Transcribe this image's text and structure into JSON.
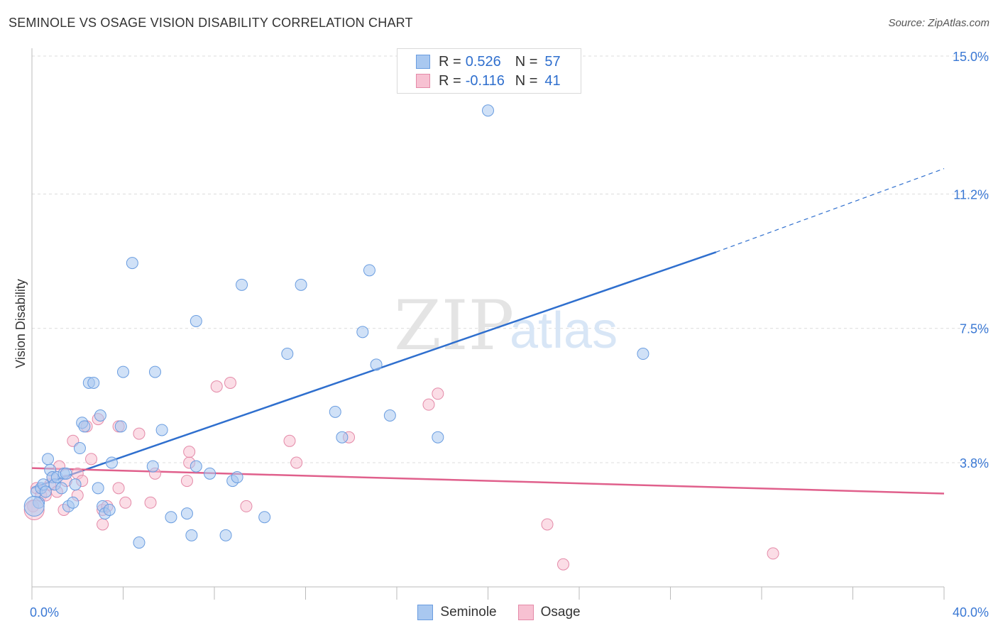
{
  "header": {
    "title": "SEMINOLE VS OSAGE VISION DISABILITY CORRELATION CHART",
    "source": "Source: ZipAtlas.com"
  },
  "watermark": {
    "zip": "ZIP",
    "atlas": "atlas"
  },
  "legend": {
    "rows": [
      {
        "r_label": "R =",
        "r_value": "0.526",
        "n_label": "N =",
        "n_value": "57",
        "color": "#a9c8f0",
        "border": "#6a9de0"
      },
      {
        "r_label": "R =",
        "r_value": "-0.116",
        "n_label": "N =",
        "n_value": "41",
        "color": "#f7c1d2",
        "border": "#e48aa8"
      }
    ]
  },
  "bottom_legend": [
    {
      "label": "Seminole",
      "color": "#a9c8f0",
      "border": "#6a9de0"
    },
    {
      "label": "Osage",
      "color": "#f7c1d2",
      "border": "#e48aa8"
    }
  ],
  "colors": {
    "seminole_fill": "#a9c8f0",
    "seminole_stroke": "#6a9de0",
    "seminole_line": "#2f6fce",
    "osage_fill": "#f7c1d2",
    "osage_stroke": "#e48aa8",
    "osage_line": "#e0608c",
    "tick_label": "#3a78d4",
    "grid": "#dcdcdc"
  },
  "chart_data": {
    "type": "scatter",
    "title": "SEMINOLE VS OSAGE VISION DISABILITY CORRELATION CHART",
    "xlabel": "",
    "ylabel": "Vision Disability",
    "xlim": [
      0,
      40
    ],
    "ylim": [
      0,
      15.5
    ],
    "x_tick_labels": [
      {
        "value": 0,
        "label": "0.0%"
      },
      {
        "value": 40,
        "label": "40.0%"
      }
    ],
    "y_tick_labels": [
      {
        "value": 3.8,
        "label": "3.8%"
      },
      {
        "value": 7.5,
        "label": "7.5%"
      },
      {
        "value": 11.2,
        "label": "11.2%"
      },
      {
        "value": 15.0,
        "label": "15.0%"
      }
    ],
    "x_minor_ticks": [
      0,
      4,
      8,
      12,
      16,
      20,
      24,
      28,
      32,
      36,
      40
    ],
    "y_gridlines": [
      3.8,
      7.5,
      11.2,
      15.0
    ],
    "grid": true,
    "legend_position": "top-center",
    "series": [
      {
        "name": "Seminole",
        "r": 0.526,
        "n": 57,
        "points": [
          [
            0.2,
            3.0
          ],
          [
            0.3,
            2.7
          ],
          [
            0.4,
            3.1
          ],
          [
            0.5,
            3.2
          ],
          [
            0.6,
            3.0
          ],
          [
            0.7,
            3.9
          ],
          [
            0.8,
            3.6
          ],
          [
            0.9,
            3.4
          ],
          [
            1.0,
            3.2
          ],
          [
            1.1,
            3.4
          ],
          [
            1.3,
            3.1
          ],
          [
            1.4,
            3.5
          ],
          [
            1.5,
            3.5
          ],
          [
            1.6,
            2.6
          ],
          [
            1.8,
            2.7
          ],
          [
            1.9,
            3.2
          ],
          [
            2.1,
            4.2
          ],
          [
            2.2,
            4.9
          ],
          [
            2.3,
            4.8
          ],
          [
            2.5,
            6.0
          ],
          [
            2.7,
            6.0
          ],
          [
            2.9,
            3.1
          ],
          [
            3.0,
            5.1
          ],
          [
            3.1,
            2.6
          ],
          [
            3.2,
            2.4
          ],
          [
            3.4,
            2.5
          ],
          [
            3.5,
            3.8
          ],
          [
            3.9,
            4.8
          ],
          [
            4.0,
            6.3
          ],
          [
            4.4,
            9.3
          ],
          [
            4.7,
            1.6
          ],
          [
            5.4,
            6.3
          ],
          [
            5.3,
            3.7
          ],
          [
            5.7,
            4.7
          ],
          [
            6.1,
            2.3
          ],
          [
            6.8,
            2.4
          ],
          [
            7.0,
            1.8
          ],
          [
            7.2,
            7.7
          ],
          [
            7.2,
            3.7
          ],
          [
            7.8,
            3.5
          ],
          [
            8.5,
            1.8
          ],
          [
            8.8,
            3.3
          ],
          [
            9.0,
            3.4
          ],
          [
            9.2,
            8.7
          ],
          [
            10.2,
            2.3
          ],
          [
            11.2,
            6.8
          ],
          [
            11.8,
            8.7
          ],
          [
            13.3,
            5.2
          ],
          [
            13.6,
            4.5
          ],
          [
            14.5,
            7.4
          ],
          [
            14.8,
            9.1
          ],
          [
            15.1,
            6.5
          ],
          [
            15.7,
            5.1
          ],
          [
            17.8,
            4.5
          ],
          [
            20.0,
            13.5
          ],
          [
            26.8,
            6.8
          ],
          [
            0.1,
            2.6
          ]
        ],
        "trend": {
          "x0": 0,
          "y0": 3.1,
          "x1": 30,
          "y1": 9.6,
          "dashed_x1": 40,
          "dashed_y1": 11.9
        }
      },
      {
        "name": "Osage",
        "r": -0.116,
        "n": 41,
        "points": [
          [
            0.05,
            2.6
          ],
          [
            0.2,
            3.1
          ],
          [
            0.4,
            2.9
          ],
          [
            0.6,
            2.9
          ],
          [
            0.8,
            3.2
          ],
          [
            0.9,
            3.4
          ],
          [
            1.1,
            3.0
          ],
          [
            1.2,
            3.7
          ],
          [
            1.4,
            2.5
          ],
          [
            1.5,
            3.3
          ],
          [
            1.8,
            4.4
          ],
          [
            2.0,
            3.5
          ],
          [
            2.0,
            2.9
          ],
          [
            2.2,
            3.3
          ],
          [
            2.4,
            4.8
          ],
          [
            2.6,
            3.9
          ],
          [
            2.9,
            5.0
          ],
          [
            3.1,
            2.1
          ],
          [
            3.1,
            2.5
          ],
          [
            3.3,
            2.6
          ],
          [
            3.8,
            4.8
          ],
          [
            3.8,
            3.1
          ],
          [
            4.1,
            2.7
          ],
          [
            4.7,
            4.6
          ],
          [
            5.2,
            2.7
          ],
          [
            5.4,
            3.5
          ],
          [
            6.8,
            3.3
          ],
          [
            6.9,
            3.8
          ],
          [
            6.9,
            4.1
          ],
          [
            8.1,
            5.9
          ],
          [
            8.7,
            6.0
          ],
          [
            9.4,
            2.6
          ],
          [
            11.3,
            4.4
          ],
          [
            11.6,
            3.8
          ],
          [
            13.9,
            4.5
          ],
          [
            17.4,
            5.4
          ],
          [
            17.8,
            5.7
          ],
          [
            22.6,
            2.1
          ],
          [
            23.3,
            1.0
          ],
          [
            32.5,
            1.3
          ],
          [
            0.1,
            2.5
          ]
        ],
        "trend": {
          "x0": 0,
          "y0": 3.65,
          "x1": 40,
          "y1": 2.95
        }
      }
    ]
  }
}
